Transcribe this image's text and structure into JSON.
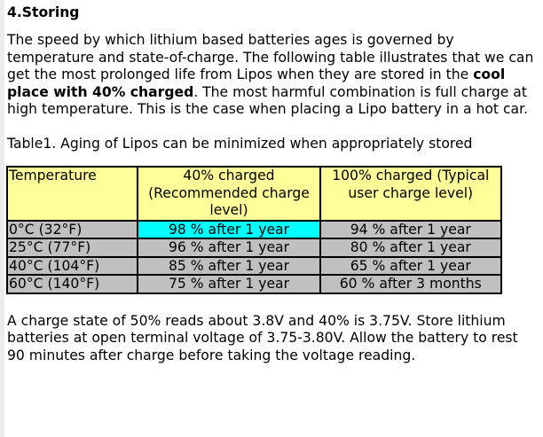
{
  "heading": "4.Storing",
  "intro": {
    "before_bold": "The speed by which lithium based batteries ages is governed by temperature and state-of-charge. The following table illustrates that we can get the most prolonged life from Lipos when they are stored in the ",
    "bold": "cool place with 40% charged",
    "after_bold": ". The most harmful combination is full charge at high temperature. This is the case when placing a Lipo battery in a hot car."
  },
  "table_caption": "Table1. Aging of Lipos can be minimized when appropriately stored",
  "table": {
    "headers": [
      "Temperature",
      "40% charged (Recommended charge level)",
      "100% charged (Typical user charge level)"
    ],
    "rows": [
      [
        "0°C (32°F)",
        "98 % after 1 year",
        "94 % after 1 year"
      ],
      [
        "25°C (77°F)",
        "96 % after 1 year",
        "80 % after 1 year"
      ],
      [
        "40°C (104°F)",
        "85 % after 1 year",
        "65 % after 1 year"
      ],
      [
        "60°C (140°F)",
        "75 % after 1 year",
        "60 % after 3 months"
      ]
    ],
    "colors": {
      "header": "#ffff99",
      "body": "#c0c0c0",
      "highlight": "#00ffff"
    }
  },
  "closing": "A charge state of 50% reads about 3.8V and 40% is 3.75V. Store lithium batteries at open terminal voltage of 3.75-3.80V. Allow the battery to rest 90 minutes after charge before taking the voltage reading."
}
